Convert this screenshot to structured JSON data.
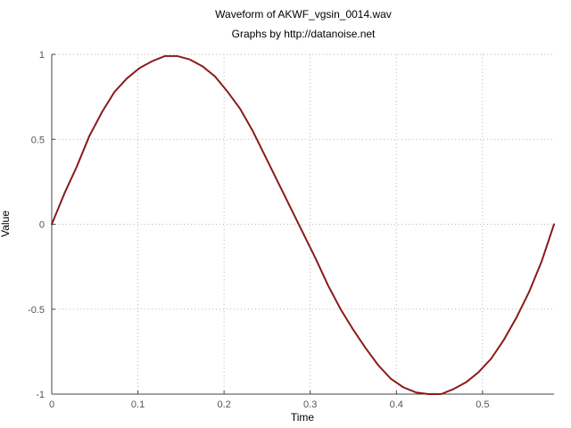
{
  "chart_data": {
    "type": "line",
    "title": "Waveform of AKWF_vgsin_0014.wav",
    "subtitle": "Graphs by http://datanoise.net",
    "xlabel": "Time",
    "ylabel": "Value",
    "xlim": [
      0,
      0.583
    ],
    "ylim": [
      -1,
      1
    ],
    "xticks": [
      0,
      0.1,
      0.2,
      0.3,
      0.4,
      0.5
    ],
    "xtick_labels": [
      "0",
      "0.1",
      "0.2",
      "0.3",
      "0.4",
      "0.5"
    ],
    "yticks": [
      -1,
      -0.5,
      0,
      0.5,
      1
    ],
    "ytick_labels": [
      "-1",
      "-0.5",
      "0",
      "0.5",
      "1"
    ],
    "grid": true,
    "series": [
      {
        "color": "#8b1a1a",
        "x": [
          0,
          0.0146,
          0.0291,
          0.0437,
          0.0583,
          0.0729,
          0.0875,
          0.102,
          0.1166,
          0.1312,
          0.1458,
          0.1603,
          0.1749,
          0.1895,
          0.2041,
          0.2186,
          0.2332,
          0.2478,
          0.2624,
          0.2769,
          0.2915,
          0.3061,
          0.3207,
          0.3353,
          0.3498,
          0.3644,
          0.379,
          0.3936,
          0.4081,
          0.4227,
          0.4373,
          0.4519,
          0.4664,
          0.481,
          0.4956,
          0.5102,
          0.5248,
          0.5393,
          0.5539,
          0.5685,
          0.583
        ],
        "y": [
          0,
          0.18,
          0.34,
          0.52,
          0.66,
          0.78,
          0.86,
          0.92,
          0.96,
          0.99,
          0.99,
          0.97,
          0.93,
          0.87,
          0.78,
          0.68,
          0.55,
          0.4,
          0.25,
          0.1,
          -0.05,
          -0.2,
          -0.36,
          -0.5,
          -0.62,
          -0.73,
          -0.83,
          -0.91,
          -0.96,
          -0.99,
          -1.0,
          -1.0,
          -0.97,
          -0.93,
          -0.87,
          -0.79,
          -0.68,
          -0.55,
          -0.4,
          -0.22,
          0
        ]
      }
    ]
  }
}
